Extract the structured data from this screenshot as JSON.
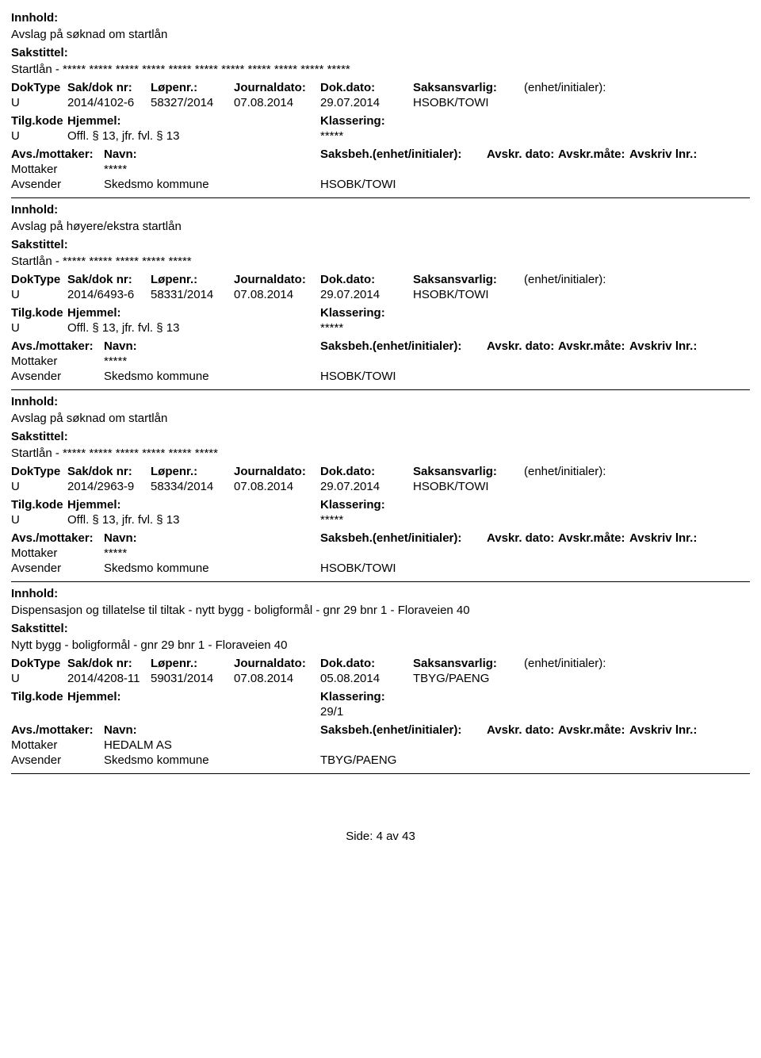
{
  "labels": {
    "innhold": "Innhold:",
    "sakstittel": "Sakstittel:",
    "doktype": "DokType",
    "sakdok": "Sak/dok nr:",
    "lopenr": "Løpenr.:",
    "journaldato": "Journaldato:",
    "dokdato": "Dok.dato:",
    "saksansvarlig": "Saksansvarlig:",
    "enhetinitialer": "(enhet/initialer):",
    "tilgkode": "Tilg.kode",
    "hjemmel": "Hjemmel:",
    "klassering": "Klassering:",
    "avsmottaker": "Avs./mottaker:",
    "navn": "Navn:",
    "saksbeh": "Saksbeh.(enhet/initialer):",
    "avskrdato": "Avskr. dato:",
    "avskrmate": "Avskr.måte:",
    "avskrivlnr": "Avskriv lnr.:",
    "mottaker": "Mottaker",
    "avsender": "Avsender"
  },
  "records": [
    {
      "innhold": "Avslag på søknad om startlån",
      "sakstittel": "Startlån - ***** ***** ***** ***** ***** ***** ***** ***** ***** ***** *****",
      "doktype": "U",
      "sakdok": "2014/4102-6",
      "lopenr": "58327/2014",
      "journaldato": "07.08.2014",
      "dokdato": "29.07.2014",
      "saksansvarlig": "HSOBK/TOWI",
      "tilgkode": "U",
      "hjemmel": "Offl. § 13, jfr. fvl. § 13",
      "klassering": "*****",
      "mottaker_navn": "*****",
      "avsender_navn": "Skedsmo kommune",
      "avsender_saksbeh": "HSOBK/TOWI"
    },
    {
      "innhold": "Avslag på høyere/ekstra startlån",
      "sakstittel": "Startlån - ***** ***** ***** ***** *****",
      "doktype": "U",
      "sakdok": "2014/6493-6",
      "lopenr": "58331/2014",
      "journaldato": "07.08.2014",
      "dokdato": "29.07.2014",
      "saksansvarlig": "HSOBK/TOWI",
      "tilgkode": "U",
      "hjemmel": "Offl. § 13, jfr. fvl. § 13",
      "klassering": "*****",
      "mottaker_navn": "*****",
      "avsender_navn": "Skedsmo kommune",
      "avsender_saksbeh": "HSOBK/TOWI"
    },
    {
      "innhold": "Avslag på søknad om startlån",
      "sakstittel": "Startlån - ***** ***** ***** ***** ***** *****",
      "doktype": "U",
      "sakdok": "2014/2963-9",
      "lopenr": "58334/2014",
      "journaldato": "07.08.2014",
      "dokdato": "29.07.2014",
      "saksansvarlig": "HSOBK/TOWI",
      "tilgkode": "U",
      "hjemmel": "Offl. § 13, jfr. fvl. § 13",
      "klassering": "*****",
      "mottaker_navn": "*****",
      "avsender_navn": "Skedsmo kommune",
      "avsender_saksbeh": "HSOBK/TOWI"
    },
    {
      "innhold": "Dispensasjon og tillatelse til tiltak - nytt bygg - boligformål - gnr 29 bnr 1 - Floraveien 40",
      "sakstittel": "Nytt bygg - boligformål - gnr 29 bnr 1 - Floraveien 40",
      "doktype": "U",
      "sakdok": "2014/4208-11",
      "lopenr": "59031/2014",
      "journaldato": "07.08.2014",
      "dokdato": "05.08.2014",
      "saksansvarlig": "TBYG/PAENG",
      "tilgkode": "",
      "hjemmel": "",
      "klassering": "29/1",
      "mottaker_navn": "HEDALM AS",
      "avsender_navn": "Skedsmo kommune",
      "avsender_saksbeh": "TBYG/PAENG"
    }
  ],
  "footer": "Side: 4 av 43"
}
